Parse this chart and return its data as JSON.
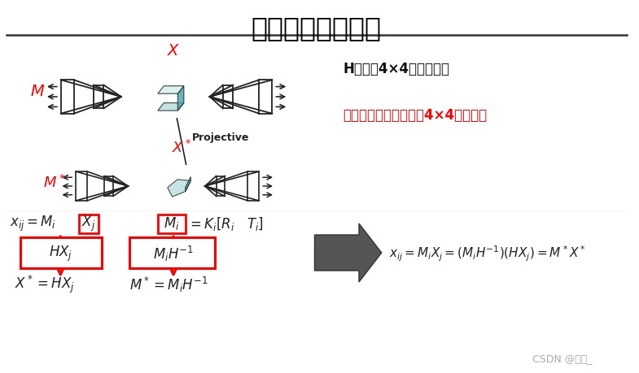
{
  "title": "透视结构恢复歧义",
  "bg_color": "#ffffff",
  "title_fontsize": 24,
  "title_color": "#000000",
  "h_note": "H为任意4×4的可逆矩阵",
  "conclusion": "结论：歧义由任意可逆4×4变换表示",
  "projective_label": "Projective",
  "watermark": "CSDN @简生_",
  "red_color": "#ff0000",
  "dark_color": "#222222",
  "teal_dark": "#4aa8b0",
  "teal_light": "#b8dde0"
}
